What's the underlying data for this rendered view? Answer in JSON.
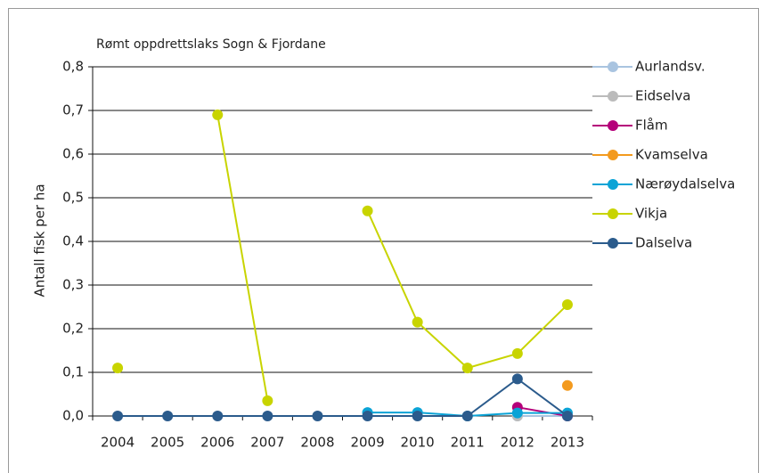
{
  "chart_data": {
    "type": "line",
    "title": "Rømt oppdrettslaks Sogn & Fjordane",
    "y_label": "Antall fisk per ha",
    "categories": [
      "2004",
      "2005",
      "2006",
      "2007",
      "2008",
      "2009",
      "2010",
      "2011",
      "2012",
      "2013"
    ],
    "series": [
      {
        "name": "Aurlandsv.",
        "color": "#a9c4e0",
        "values": [
          null,
          null,
          null,
          null,
          null,
          null,
          null,
          null,
          0,
          0
        ]
      },
      {
        "name": "Eidselva",
        "color": "#bbbbbb",
        "values": [
          null,
          null,
          null,
          null,
          null,
          null,
          null,
          null,
          0,
          null
        ]
      },
      {
        "name": "Flåm",
        "color": "#b5007a",
        "values": [
          null,
          null,
          null,
          null,
          null,
          null,
          null,
          null,
          0.02,
          0
        ]
      },
      {
        "name": "Kvamselva",
        "color": "#f39a1e",
        "values": [
          null,
          null,
          null,
          null,
          null,
          null,
          null,
          null,
          null,
          0.07
        ]
      },
      {
        "name": "Nærøydalselva",
        "color": "#0aa3d6",
        "values": [
          null,
          null,
          null,
          null,
          null,
          0.008,
          0.008,
          0,
          0.007,
          0.007
        ]
      },
      {
        "name": "Vikja",
        "color": "#c8d400",
        "values": [
          0.11,
          null,
          0.69,
          0.035,
          null,
          0.47,
          0.215,
          0.11,
          0.143,
          0.255
        ]
      },
      {
        "name": "Dalselva",
        "color": "#2b5b8c",
        "values": [
          0,
          0,
          0,
          0,
          0,
          0,
          0,
          0,
          0.085,
          0
        ]
      }
    ],
    "ylim": [
      0,
      0.8
    ],
    "yticks": [
      {
        "value": 0,
        "label": "0,0"
      },
      {
        "value": 0.1,
        "label": "0,1"
      },
      {
        "value": 0.2,
        "label": "0,2"
      },
      {
        "value": 0.3,
        "label": "0,3"
      },
      {
        "value": 0.4,
        "label": "0,4"
      },
      {
        "value": 0.5,
        "label": "0,5"
      },
      {
        "value": 0.6,
        "label": "0,6"
      },
      {
        "value": 0.7,
        "label": "0,7"
      },
      {
        "value": 0.8,
        "label": "0,8"
      }
    ],
    "grid": true,
    "legend": "right"
  }
}
